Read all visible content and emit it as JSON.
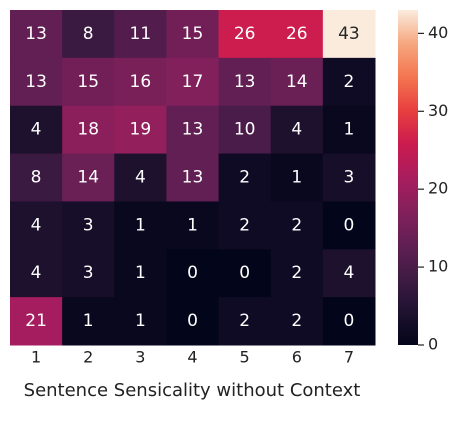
{
  "chart_data": {
    "type": "heatmap",
    "xlabel": "Sentence Sensicality without Context",
    "categories": [
      "1",
      "2",
      "3",
      "4",
      "5",
      "6",
      "7"
    ],
    "values": [
      [
        13,
        8,
        11,
        15,
        26,
        26,
        43
      ],
      [
        13,
        15,
        16,
        17,
        13,
        14,
        2
      ],
      [
        4,
        18,
        19,
        13,
        10,
        4,
        1
      ],
      [
        8,
        14,
        4,
        13,
        2,
        1,
        3
      ],
      [
        4,
        3,
        1,
        1,
        2,
        2,
        0
      ],
      [
        4,
        3,
        1,
        0,
        0,
        2,
        4
      ],
      [
        21,
        1,
        1,
        0,
        2,
        2,
        0
      ]
    ],
    "colormap": [
      "#03051a",
      "#1f1230",
      "#3f1b44",
      "#611f53",
      "#84205c",
      "#a91d5e",
      "#cb1b4f",
      "#e83f3f",
      "#f37651",
      "#f6a77f",
      "#faebdd"
    ],
    "zlim": [
      0,
      43
    ],
    "zticks": [
      0,
      10,
      20,
      30,
      40
    ]
  }
}
